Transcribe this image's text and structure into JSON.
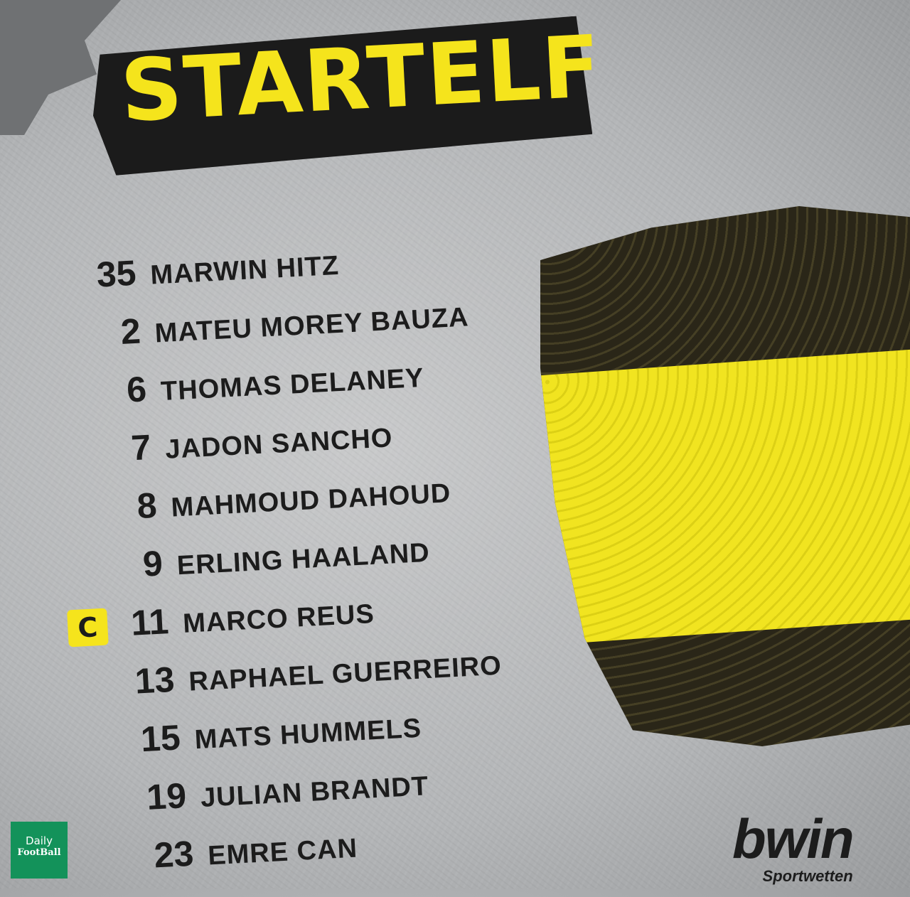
{
  "title": "STARTELF",
  "players": [
    {
      "number": "35",
      "name": "MARWIN HITZ"
    },
    {
      "number": "2",
      "name": "MATEU MOREY BAUZA"
    },
    {
      "number": "6",
      "name": "THOMAS DELANEY"
    },
    {
      "number": "7",
      "name": "JADON SANCHO"
    },
    {
      "number": "8",
      "name": "MAHMOUD DAHOUD"
    },
    {
      "number": "9",
      "name": "ERLING HAALAND"
    },
    {
      "number": "11",
      "name": "MARCO REUS",
      "captain": "C"
    },
    {
      "number": "13",
      "name": "RAPHAEL GUERREIRO"
    },
    {
      "number": "15",
      "name": "MATS HUMMELS"
    },
    {
      "number": "19",
      "name": "JULIAN BRANDT"
    },
    {
      "number": "23",
      "name": "EMRE CAN"
    }
  ],
  "watermark": {
    "line1": "Daily",
    "line2": "FootBall"
  },
  "sponsor": {
    "brand": "bwin",
    "tagline": "Sportwetten"
  },
  "colors": {
    "accent": "#f5e41c",
    "dark": "#1c1c1c",
    "watermark_bg": "#13925a"
  }
}
